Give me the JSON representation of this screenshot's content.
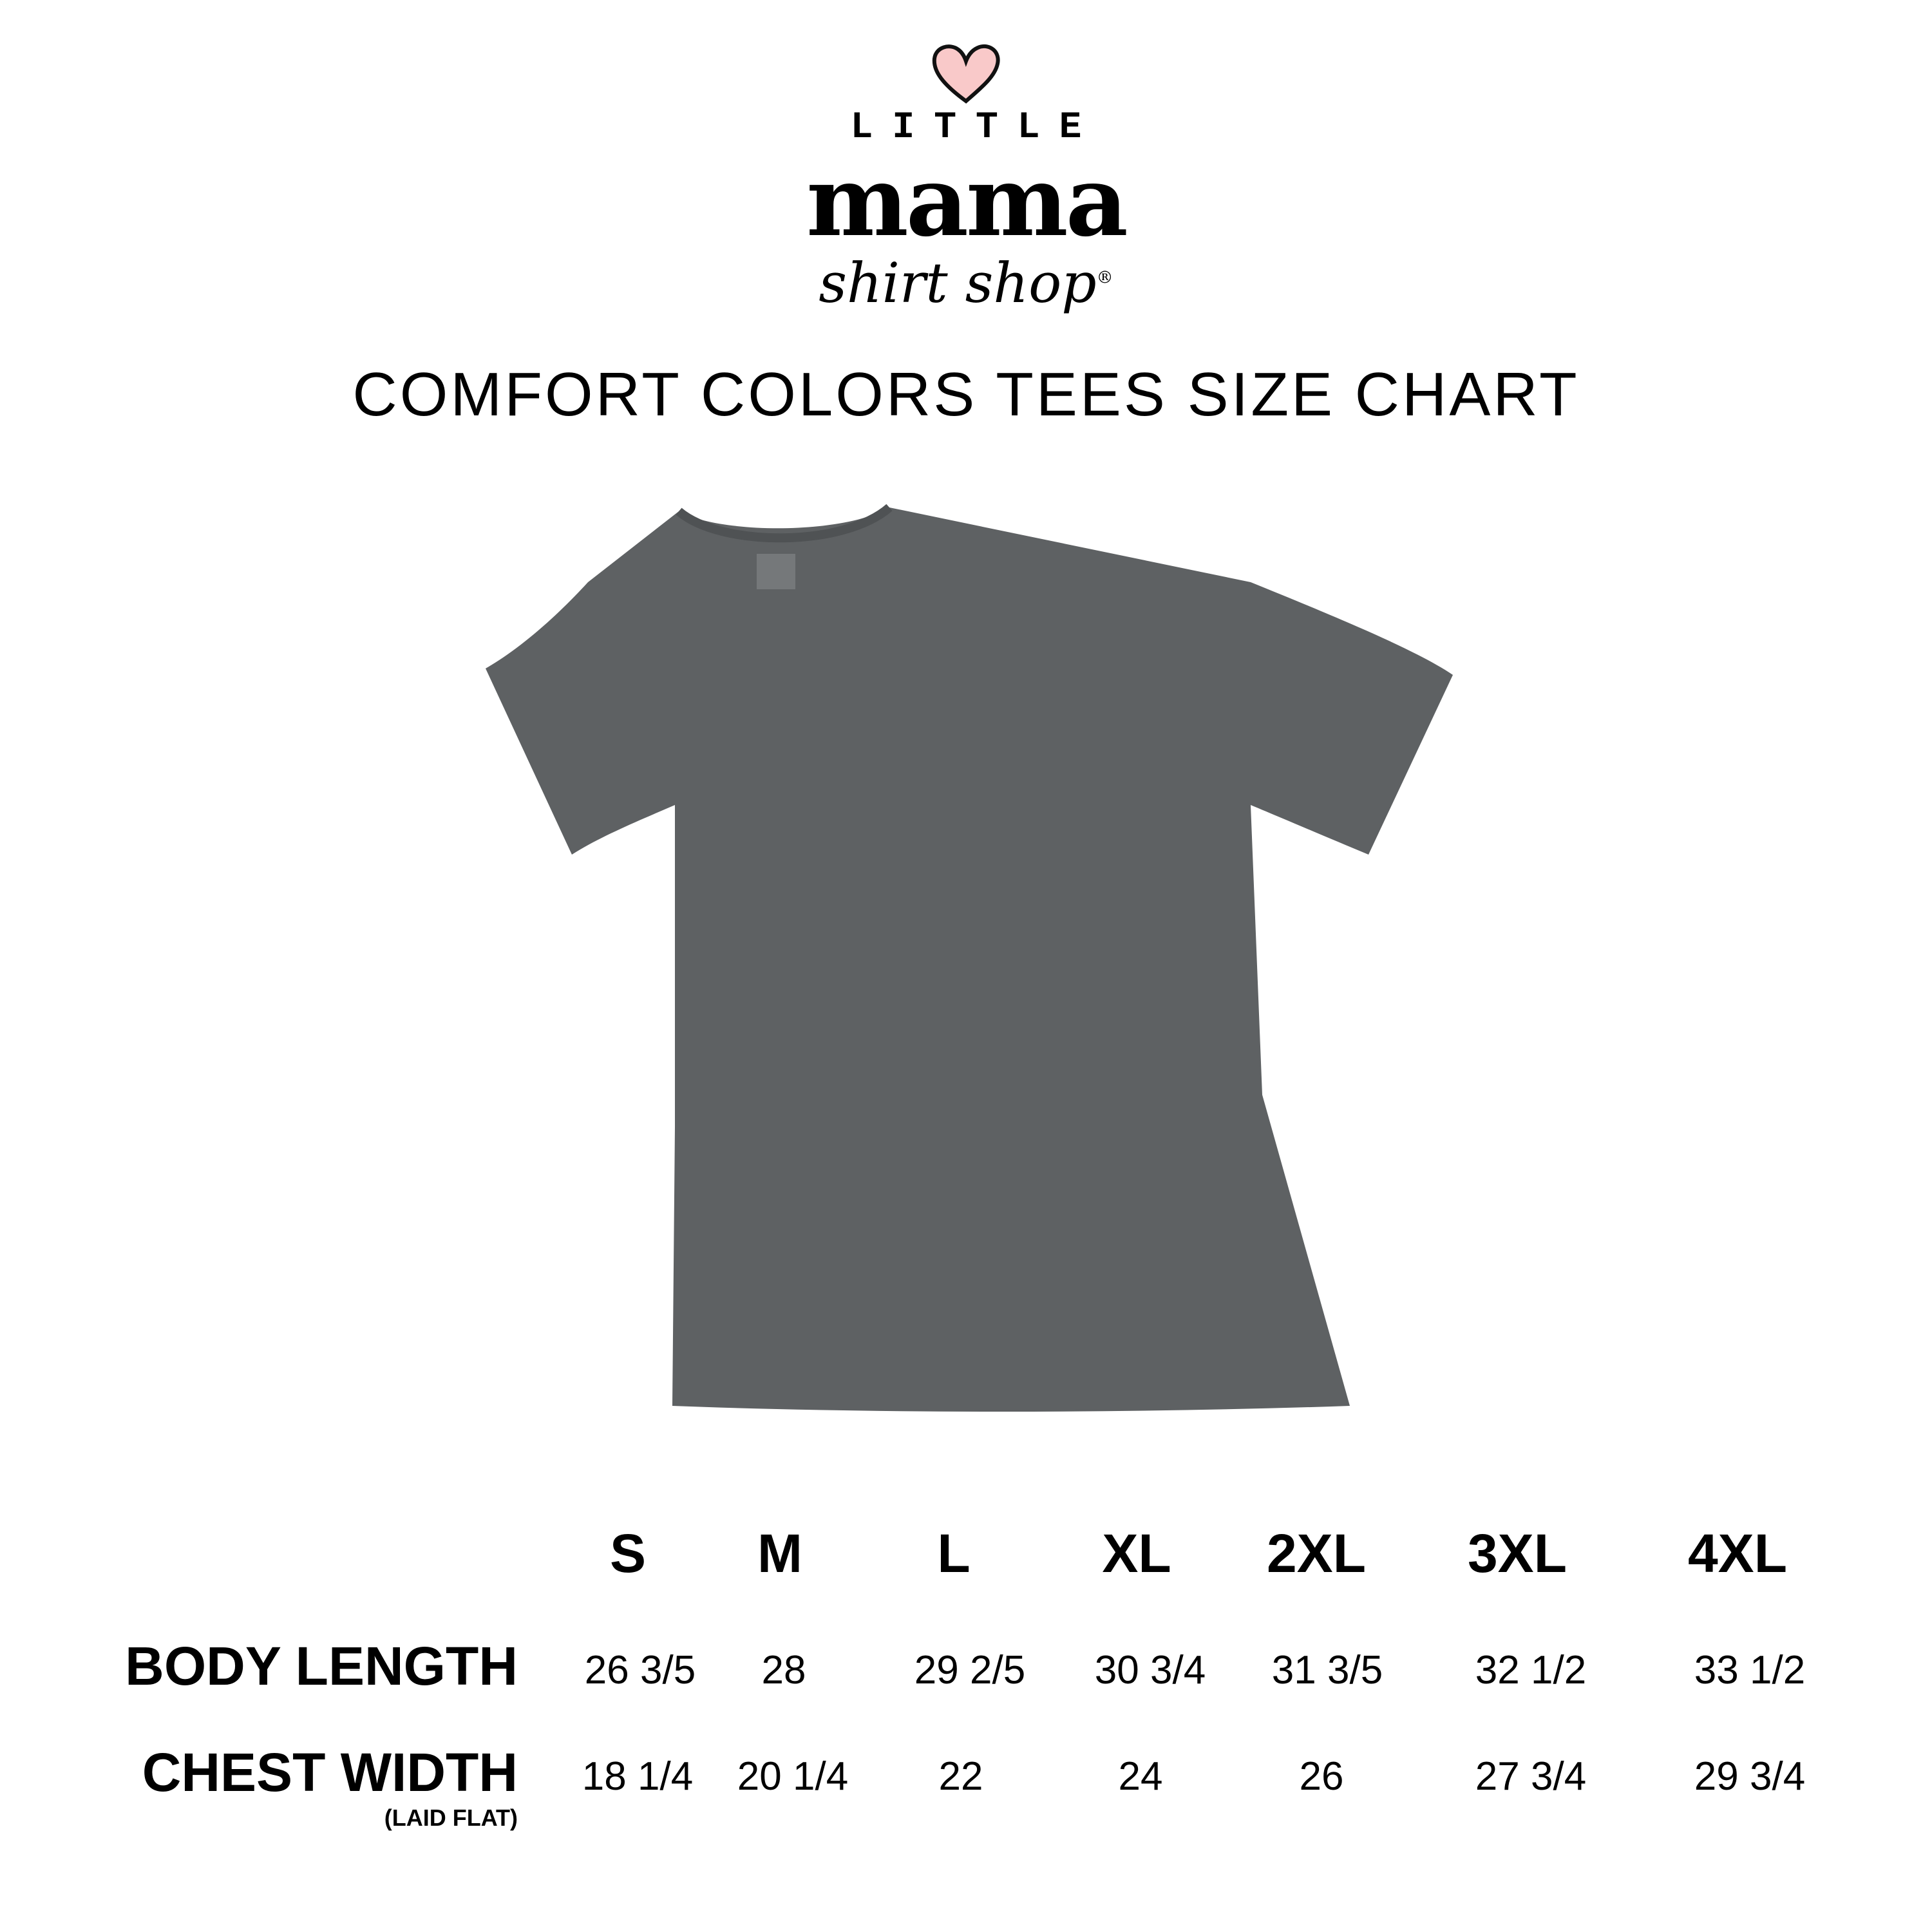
{
  "logo": {
    "line1": "LITTLE",
    "line2": "mama",
    "line3": "shirt shop",
    "registered": "®",
    "heart_color": "#f9c9c9"
  },
  "title": "COMFORT COLORS TEES SIZE CHART",
  "shirt": {
    "color": "#5e6163"
  },
  "size_table": {
    "sizes": [
      "S",
      "M",
      "L",
      "XL",
      "2XL",
      "3XL",
      "4XL"
    ],
    "rows": [
      {
        "label": "BODY LENGTH",
        "sublabel": "",
        "values": [
          "26 3/5",
          "28",
          "29 2/5",
          "30 3/4",
          "31 3/5",
          "32 1/2",
          "33 1/2"
        ]
      },
      {
        "label": "CHEST WIDTH",
        "sublabel": "(LAID FLAT)",
        "values": [
          "18 1/4",
          "20 1/4",
          "22",
          "24",
          "26",
          "27 3/4",
          "29 3/4"
        ]
      }
    ]
  }
}
